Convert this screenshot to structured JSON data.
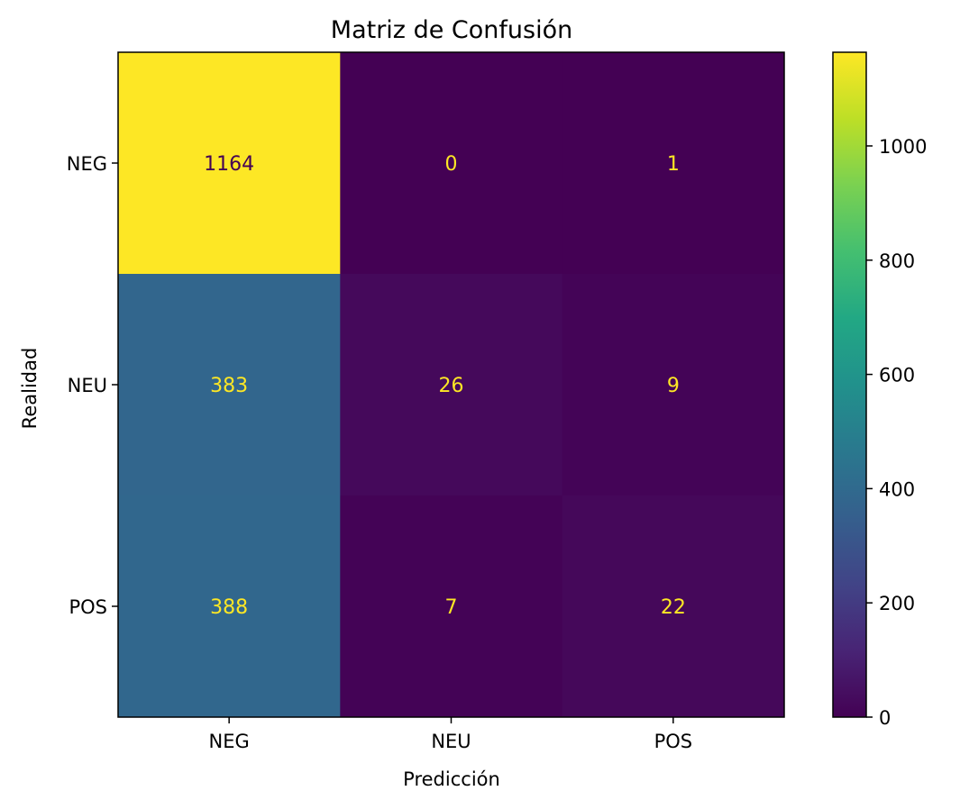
{
  "chart_data": {
    "type": "heatmap",
    "title": "Matriz de Confusión",
    "xlabel": "Predicción",
    "ylabel": "Realidad",
    "x_categories": [
      "NEG",
      "NEU",
      "POS"
    ],
    "y_categories": [
      "NEG",
      "NEU",
      "POS"
    ],
    "values": [
      [
        1164,
        0,
        1
      ],
      [
        383,
        26,
        9
      ],
      [
        388,
        7,
        22
      ]
    ],
    "colorbar": {
      "range": [
        0,
        1164
      ],
      "ticks": [
        0,
        200,
        400,
        600,
        800,
        1000
      ]
    },
    "colormap": "viridis"
  }
}
